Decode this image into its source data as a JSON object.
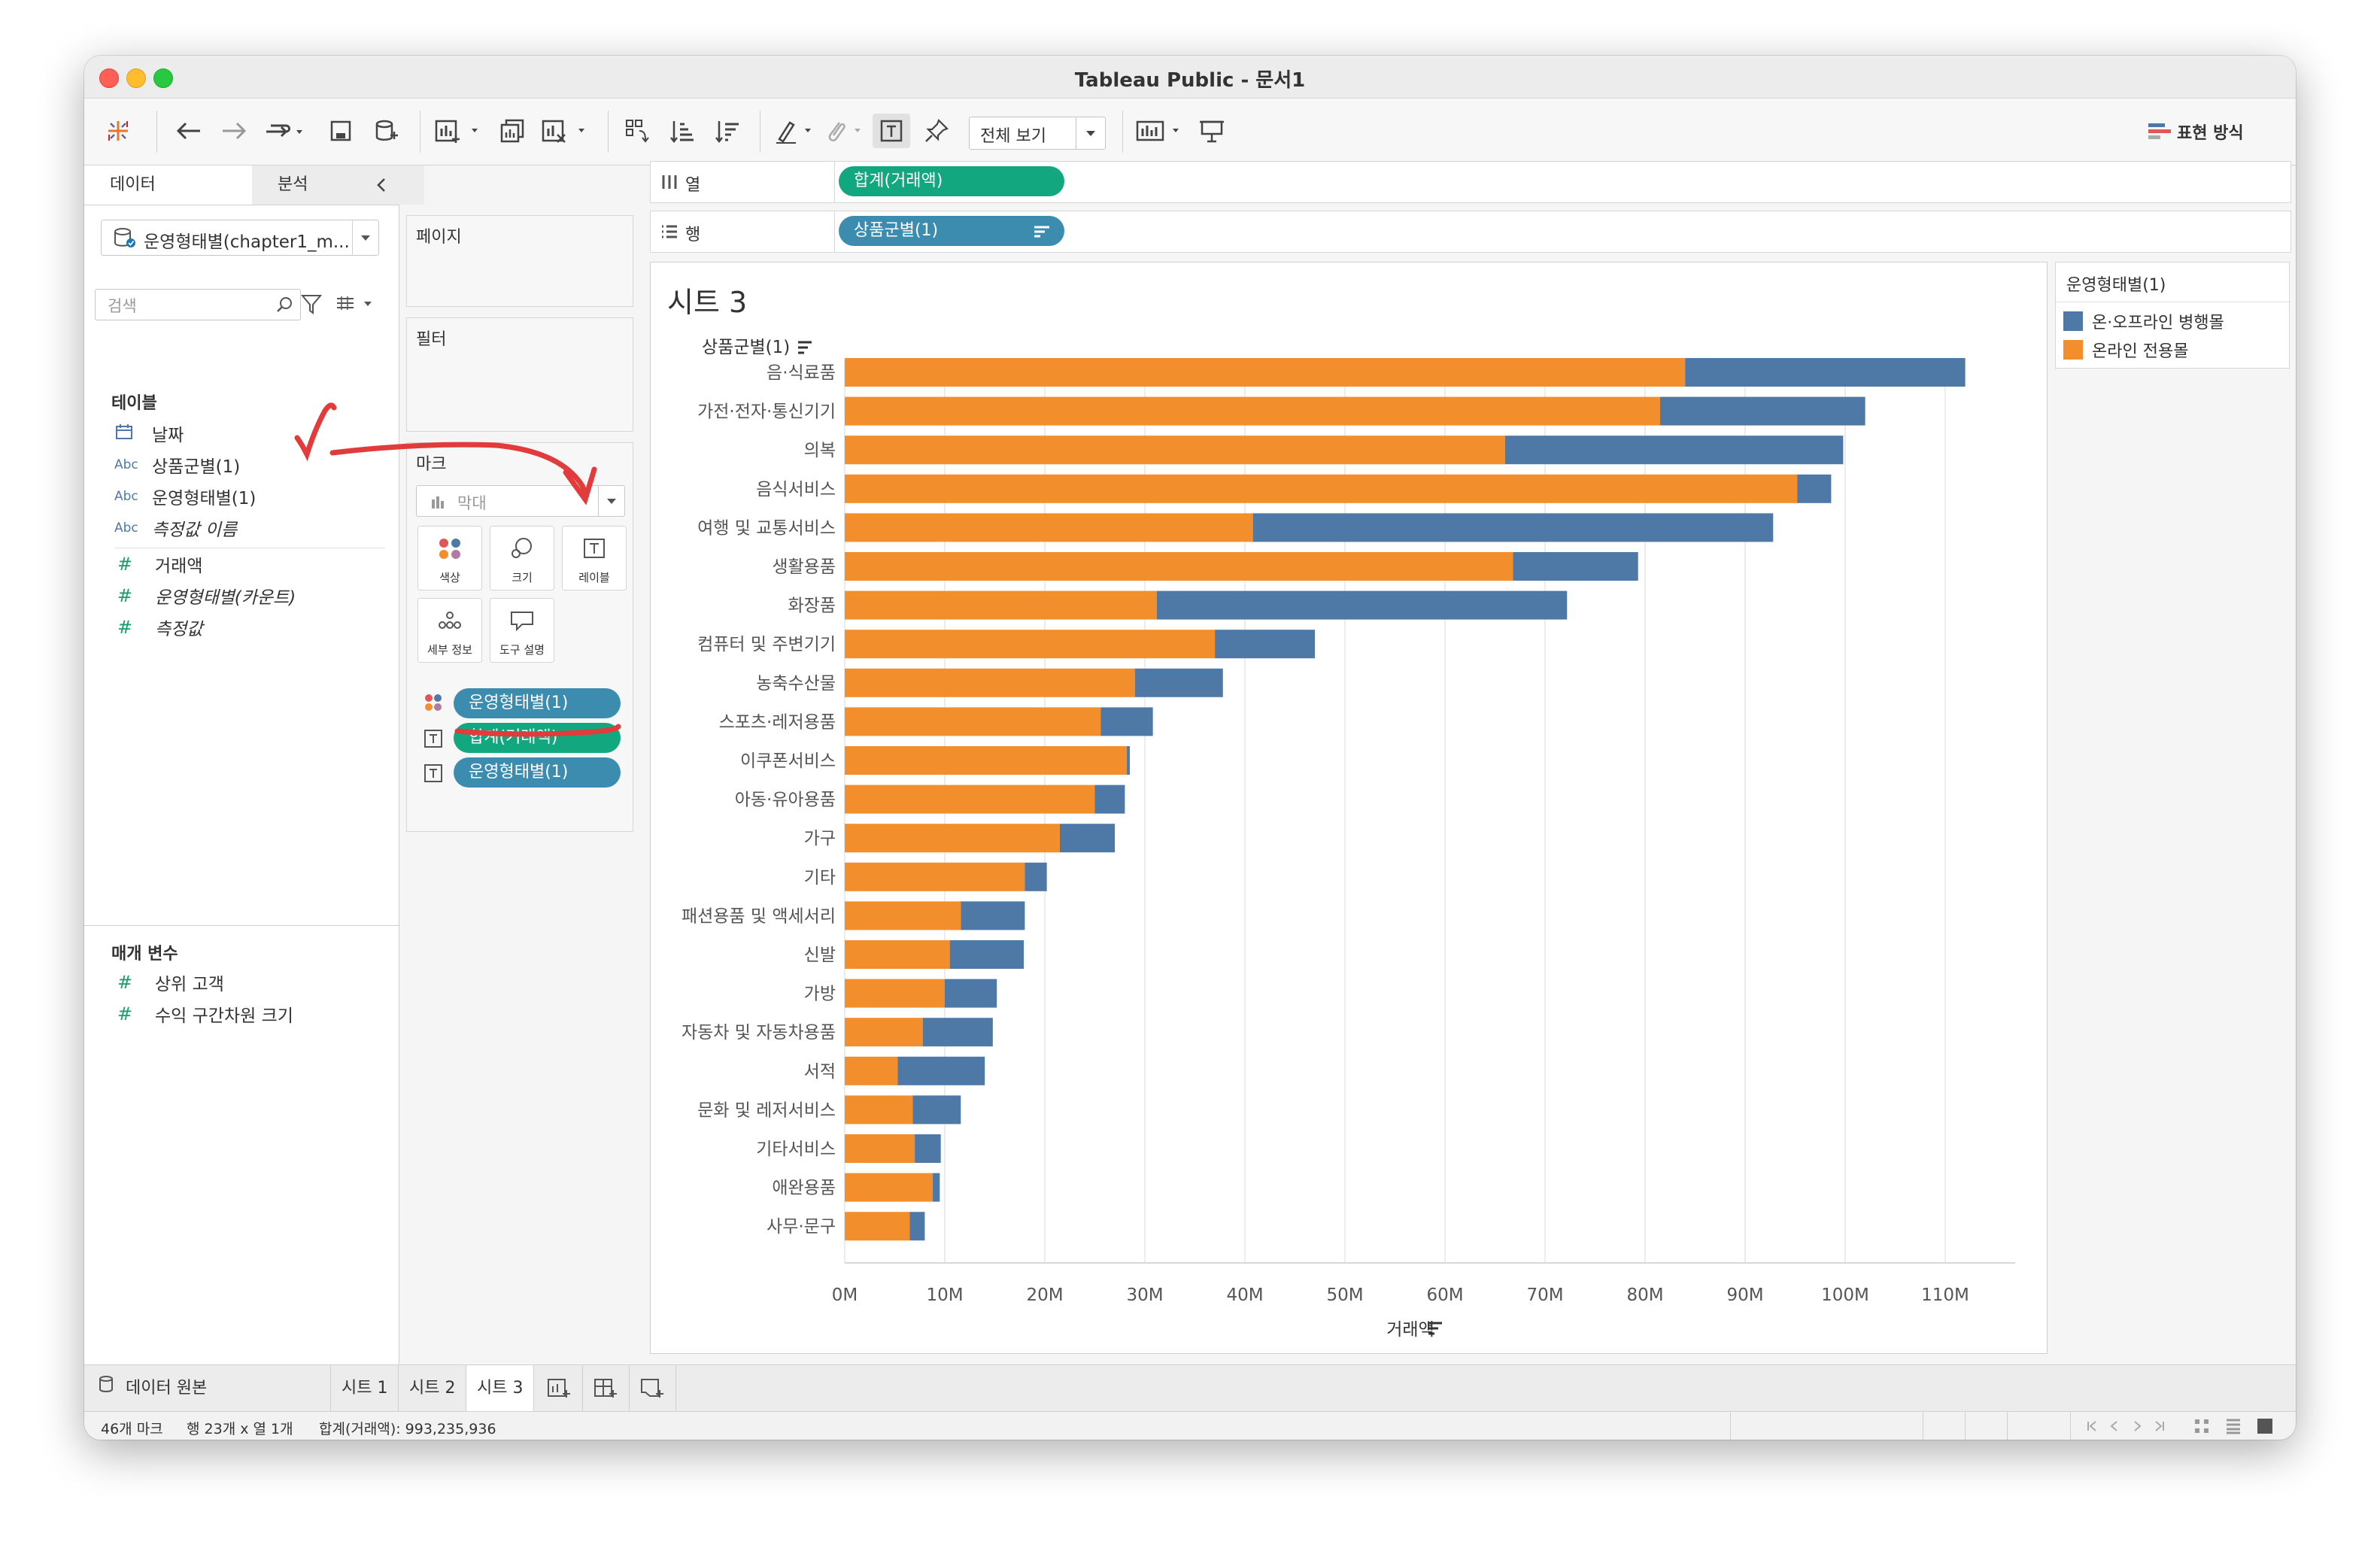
{
  "window": {
    "title": "Tableau Public - 문서1"
  },
  "toolbar": {
    "view_mode": "전체 보기",
    "show_me": "표현 방식"
  },
  "left_panel": {
    "tab_data": "데이터",
    "tab_analysis": "분석",
    "datasource": "운영형태별(chapter1_m...",
    "search_placeholder": "검색",
    "tables_header": "테이블",
    "fields": [
      {
        "type": "date",
        "type_label": "",
        "name": "날짜"
      },
      {
        "type": "dim",
        "type_label": "Abc",
        "name": "상품군별(1)"
      },
      {
        "type": "dim",
        "type_label": "Abc",
        "name": "운영형태별(1)"
      },
      {
        "type": "dim",
        "type_label": "Abc",
        "name": "측정값 이름"
      },
      {
        "type": "measure",
        "type_label": "#",
        "name": "거래액"
      },
      {
        "type": "measure",
        "type_label": "#",
        "name": "운영형태별(카운트)"
      },
      {
        "type": "measure",
        "type_label": "#",
        "name": "측정값"
      }
    ],
    "params_header": "매개 변수",
    "params": [
      {
        "type_label": "#",
        "name": "상위 고객"
      },
      {
        "type_label": "#",
        "name": "수익 구간차원 크기"
      }
    ]
  },
  "cards": {
    "pages": "페이지",
    "filters": "필터",
    "marks": "마크",
    "mark_type": "막대",
    "buttons": {
      "color": "색상",
      "size": "크기",
      "label": "레이블",
      "detail": "세부 정보",
      "tooltip": "도구 설명"
    },
    "mark_pills": [
      "운영형태별(1)",
      "합계(거래액)",
      "운영형태별(1)"
    ]
  },
  "shelves": {
    "columns_label": "열",
    "columns_pill": "합계(거래액)",
    "rows_label": "행",
    "rows_pill": "상품군별(1)"
  },
  "sheet": {
    "title": "시트 3"
  },
  "legend": {
    "title": "운영형태별(1)",
    "items": [
      {
        "name": "온·오프라인 병행몰",
        "color": "#4e79a7"
      },
      {
        "name": "온라인 전용몰",
        "color": "#f28e2b"
      }
    ]
  },
  "chart_data": {
    "type": "bar",
    "orientation": "horizontal",
    "stacked": true,
    "ylabel": "상품군별(1)",
    "xlabel": "거래액",
    "xlim": [
      0,
      118
    ],
    "xticks": [
      "0M",
      "10M",
      "20M",
      "30M",
      "40M",
      "50M",
      "60M",
      "70M",
      "80M",
      "90M",
      "100M",
      "110M"
    ],
    "categories": [
      "음·식료품",
      "가전·전자·통신기기",
      "의복",
      "음식서비스",
      "여행 및 교통서비스",
      "생활용품",
      "화장품",
      "컴퓨터 및 주변기기",
      "농축수산물",
      "스포츠·레저용품",
      "이쿠폰서비스",
      "아동·유아용품",
      "가구",
      "기타",
      "패션용품 및 액세서리",
      "신발",
      "가방",
      "자동차 및 자동차용품",
      "서적",
      "문화 및 레저서비스",
      "기타서비스",
      "애완용품",
      "사무·문구"
    ],
    "series": [
      {
        "name": "온라인 전용몰",
        "color": "#f28e2b",
        "values": [
          84,
          81.5,
          66,
          95.2,
          40.8,
          66.8,
          31.2,
          37,
          29,
          25.6,
          28.2,
          25,
          21.5,
          18,
          11.6,
          10.5,
          10,
          7.8,
          5.3,
          6.8,
          7,
          8.8,
          6.5
        ]
      },
      {
        "name": "온·오프라인 병행몰",
        "color": "#4e79a7",
        "values": [
          28,
          20.5,
          33.8,
          3.4,
          52,
          12.5,
          41,
          10,
          8.8,
          5.2,
          0.3,
          3,
          5.5,
          2.2,
          6.4,
          7.4,
          5.2,
          7,
          8.7,
          4.8,
          2.6,
          0.7,
          1.5
        ]
      }
    ],
    "grid": true
  },
  "bottom": {
    "datasource_tab": "데이터 원본",
    "sheets": [
      "시트 1",
      "시트 2",
      "시트 3"
    ]
  },
  "status": {
    "marks": "46개 마크",
    "dims": "행 23개 x 열 1개",
    "sum": "합계(거래액): 993,235,936"
  }
}
